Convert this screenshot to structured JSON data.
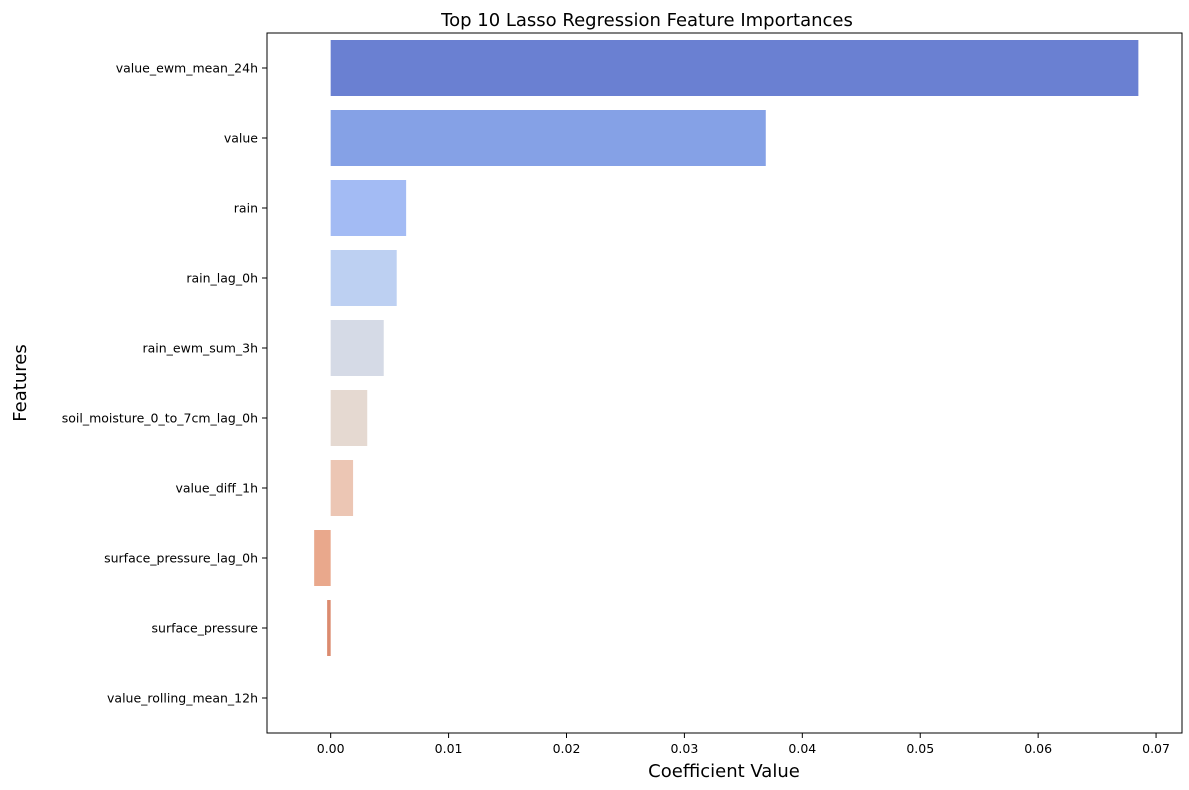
{
  "chart_data": {
    "type": "bar",
    "orientation": "horizontal",
    "title": "Top 10 Lasso Regression Feature Importances",
    "xlabel": "Coefficient Value",
    "ylabel": "Features",
    "xlim": [
      -0.0054,
      0.0722
    ],
    "xticks": [
      0.0,
      0.01,
      0.02,
      0.03,
      0.04,
      0.05,
      0.06,
      0.07
    ],
    "xtick_labels": [
      "0.00",
      "0.01",
      "0.02",
      "0.03",
      "0.04",
      "0.05",
      "0.06",
      "0.07"
    ],
    "grid": false,
    "legend": "none",
    "palette": "coolwarm",
    "categories": [
      "value_ewm_mean_24h",
      "value",
      "rain",
      "rain_lag_0h",
      "rain_ewm_sum_3h",
      "soil_moisture_0_to_7cm_lag_0h",
      "value_diff_1h",
      "surface_pressure_lag_0h",
      "surface_pressure",
      "value_rolling_mean_12h"
    ],
    "values": [
      0.0685,
      0.0369,
      0.0064,
      0.0056,
      0.0045,
      0.0031,
      0.0019,
      -0.0014,
      -0.0003,
      0.0
    ],
    "colors": [
      "#6a80d2",
      "#85a1e6",
      "#a3bbf4",
      "#bdd0f2",
      "#d5dae6",
      "#e5d9d1",
      "#ecc6b4",
      "#e9a88c",
      "#db8b6f",
      "#cc6d56"
    ]
  }
}
